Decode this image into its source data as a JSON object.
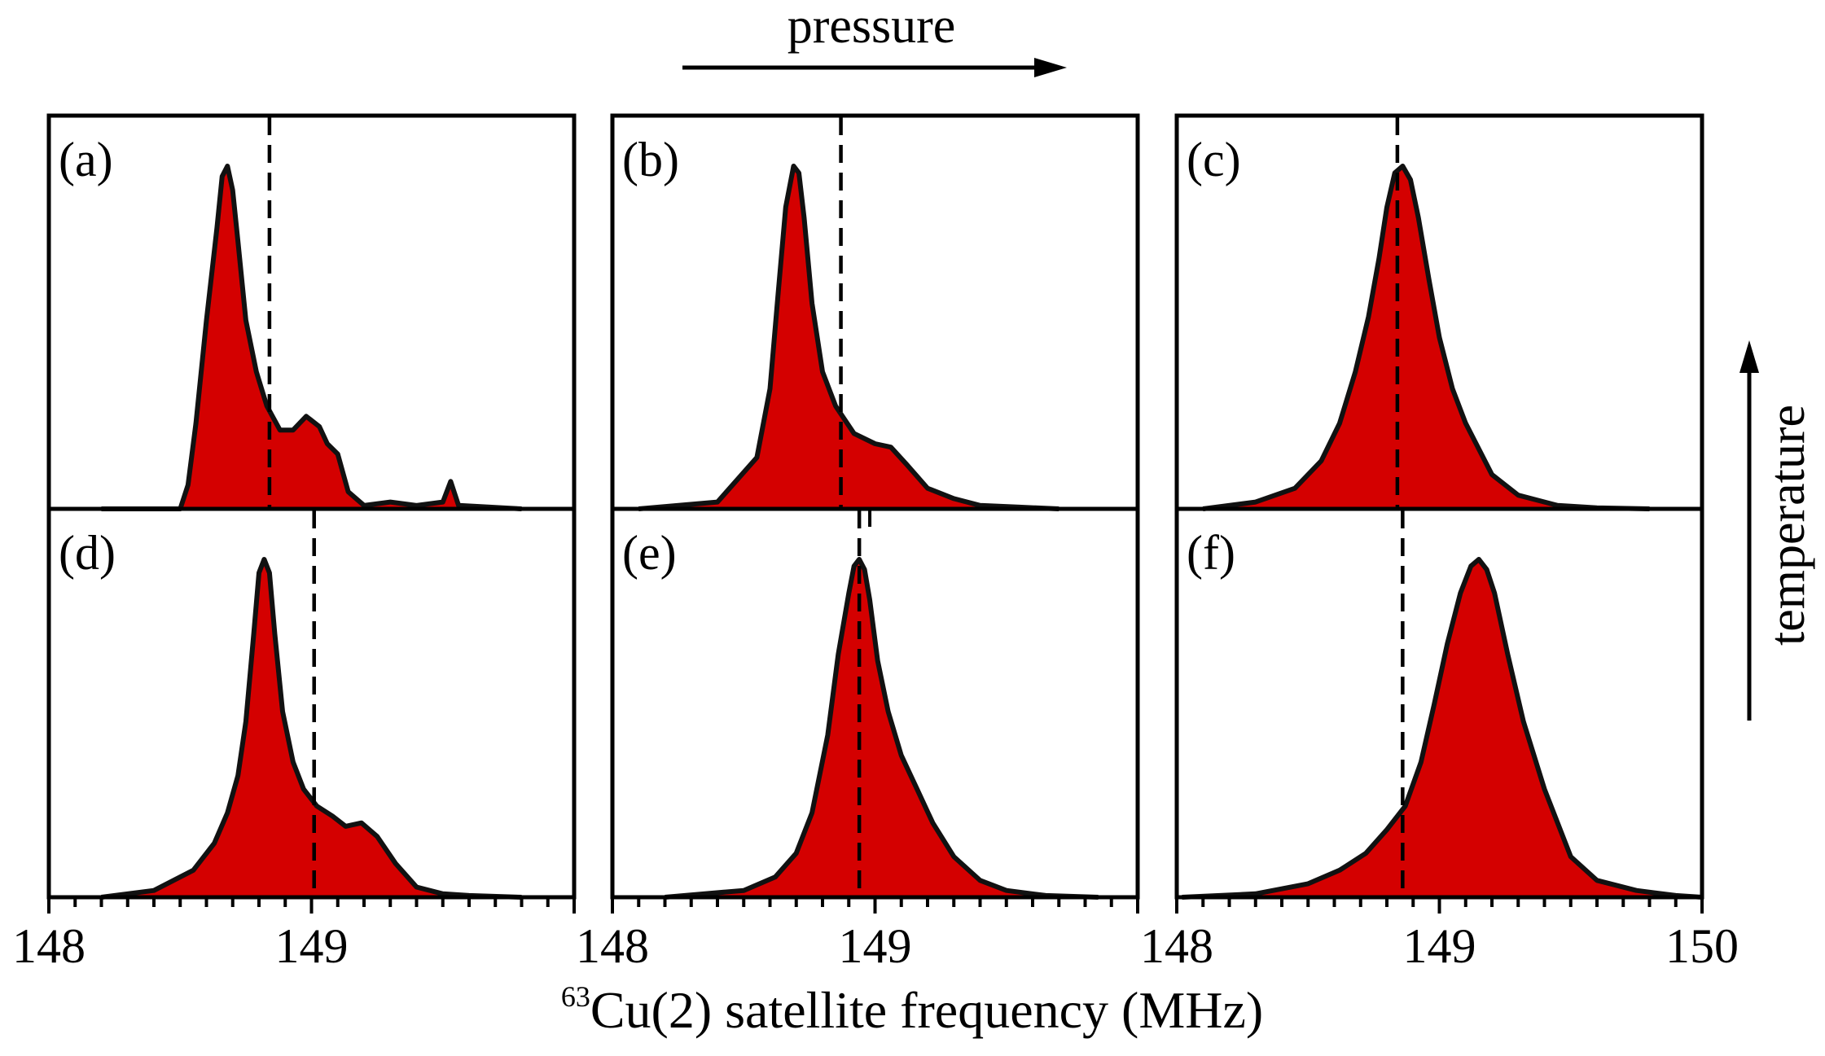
{
  "chart_data": {
    "type": "area",
    "xlabel_sup": "63",
    "xlabel_main": "Cu(2) satellite frequency (MHz)",
    "top_arrow_label": "pressure",
    "side_arrow_label": "temperature",
    "columns": [
      {
        "xlim": [
          148,
          150
        ],
        "ticks": [
          148,
          149
        ]
      },
      {
        "xlim": [
          148,
          150
        ],
        "ticks": [
          148,
          149
        ]
      },
      {
        "xlim": [
          148,
          150
        ],
        "ticks": [
          148,
          149,
          150
        ]
      }
    ],
    "fill_color": "#d40000",
    "line_color": "#111111",
    "panels": [
      {
        "label": "(a)",
        "row": 0,
        "col": 0,
        "dashed_x": 148.84,
        "x": [
          148.2,
          148.5,
          148.53,
          148.56,
          148.6,
          148.64,
          148.66,
          148.68,
          148.7,
          148.72,
          148.75,
          148.79,
          148.83,
          148.88,
          148.93,
          148.98,
          149.03,
          149.06,
          149.1,
          149.14,
          149.2,
          149.3,
          149.4,
          149.5,
          149.53,
          149.56,
          149.8
        ],
        "y": [
          0,
          0,
          0.07,
          0.25,
          0.55,
          0.82,
          0.97,
          1.0,
          0.93,
          0.78,
          0.55,
          0.4,
          0.3,
          0.23,
          0.23,
          0.27,
          0.24,
          0.19,
          0.16,
          0.05,
          0.01,
          0.02,
          0.01,
          0.02,
          0.08,
          0.01,
          0
        ]
      },
      {
        "label": "(b)",
        "row": 0,
        "col": 1,
        "dashed_x": 148.87,
        "x": [
          148.1,
          148.4,
          148.55,
          148.6,
          148.63,
          148.66,
          148.69,
          148.71,
          148.73,
          148.76,
          148.8,
          148.85,
          148.92,
          149.0,
          149.06,
          149.12,
          149.2,
          149.3,
          149.4,
          149.55,
          149.7
        ],
        "y": [
          0,
          0.02,
          0.15,
          0.35,
          0.62,
          0.88,
          1.0,
          0.98,
          0.85,
          0.6,
          0.4,
          0.3,
          0.22,
          0.19,
          0.18,
          0.13,
          0.06,
          0.03,
          0.01,
          0.005,
          0
        ],
        "tick_above_x": 148.98
      },
      {
        "label": "(c)",
        "row": 0,
        "col": 2,
        "dashed_x": 148.84,
        "x": [
          148.1,
          148.3,
          148.45,
          148.55,
          148.62,
          148.68,
          148.73,
          148.77,
          148.8,
          148.83,
          148.86,
          148.89,
          148.92,
          148.96,
          149.0,
          149.05,
          149.1,
          149.2,
          149.3,
          149.45,
          149.6,
          149.8
        ],
        "y": [
          0,
          0.02,
          0.06,
          0.14,
          0.25,
          0.4,
          0.56,
          0.73,
          0.88,
          0.98,
          1.0,
          0.96,
          0.85,
          0.67,
          0.5,
          0.35,
          0.25,
          0.1,
          0.04,
          0.01,
          0.003,
          0
        ]
      },
      {
        "label": "(d)",
        "row": 1,
        "col": 0,
        "dashed_x": 149.01,
        "x": [
          148.2,
          148.4,
          148.55,
          148.63,
          148.68,
          148.72,
          148.75,
          148.78,
          148.8,
          148.82,
          148.84,
          148.86,
          148.89,
          148.93,
          148.97,
          149.02,
          149.08,
          149.13,
          149.19,
          149.25,
          149.32,
          149.4,
          149.5,
          149.6,
          149.8
        ],
        "y": [
          0,
          0.02,
          0.08,
          0.16,
          0.25,
          0.36,
          0.52,
          0.78,
          0.96,
          1.0,
          0.96,
          0.78,
          0.55,
          0.4,
          0.32,
          0.27,
          0.24,
          0.21,
          0.22,
          0.18,
          0.1,
          0.03,
          0.01,
          0.005,
          0
        ]
      },
      {
        "label": "(e)",
        "row": 1,
        "col": 1,
        "dashed_x": 148.94,
        "x": [
          148.2,
          148.5,
          148.62,
          148.7,
          148.76,
          148.82,
          148.86,
          148.9,
          148.92,
          148.94,
          148.96,
          148.98,
          149.01,
          149.05,
          149.1,
          149.16,
          149.22,
          149.3,
          149.4,
          149.5,
          149.65,
          149.85
        ],
        "y": [
          0,
          0.02,
          0.06,
          0.13,
          0.25,
          0.48,
          0.72,
          0.9,
          0.98,
          1.0,
          0.97,
          0.88,
          0.7,
          0.55,
          0.42,
          0.32,
          0.22,
          0.12,
          0.05,
          0.02,
          0.005,
          0
        ]
      },
      {
        "label": "(f)",
        "row": 1,
        "col": 2,
        "dashed_x": 148.86,
        "x": [
          148.02,
          148.3,
          148.5,
          148.62,
          148.72,
          148.8,
          148.87,
          148.93,
          148.98,
          149.03,
          149.08,
          149.12,
          149.15,
          149.18,
          149.21,
          149.26,
          149.32,
          149.4,
          149.5,
          149.6,
          149.75,
          149.9,
          150.0
        ],
        "y": [
          0,
          0.01,
          0.04,
          0.08,
          0.13,
          0.2,
          0.27,
          0.4,
          0.57,
          0.75,
          0.9,
          0.98,
          1.0,
          0.97,
          0.9,
          0.72,
          0.52,
          0.32,
          0.12,
          0.05,
          0.02,
          0.005,
          0
        ]
      }
    ]
  }
}
